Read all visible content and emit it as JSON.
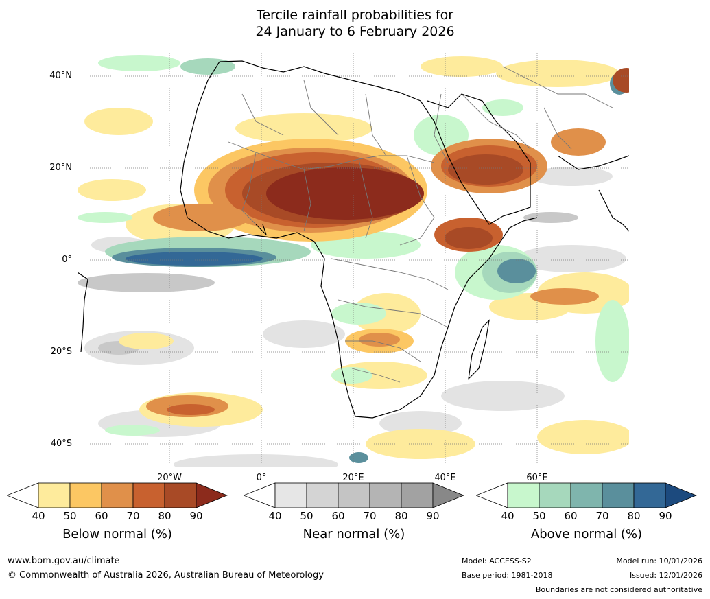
{
  "title": {
    "line1": "Tercile rainfall probabilities for",
    "line2": "24 January to 6 February 2026"
  },
  "map": {
    "lat_labels": [
      "40°N",
      "20°N",
      "0°",
      "20°S",
      "40°S"
    ],
    "lon_labels": [
      "20°W",
      "0°",
      "20°E",
      "40°E",
      "60°E"
    ]
  },
  "colorbars": {
    "ticks": [
      "40",
      "50",
      "60",
      "70",
      "80",
      "90"
    ],
    "below": {
      "title": "Below normal (%)",
      "colors": [
        "#ffffff",
        "#feeb9c",
        "#fcc763",
        "#e0904a",
        "#c8612f",
        "#a84a26",
        "#8c2b1c"
      ]
    },
    "near": {
      "title": "Near normal (%)",
      "colors": [
        "#ffffff",
        "#e6e6e6",
        "#d4d4d4",
        "#c4c4c4",
        "#b4b4b4",
        "#a2a2a2",
        "#888888"
      ]
    },
    "above": {
      "title": "Above normal (%)",
      "colors": [
        "#ffffff",
        "#c8f7cd",
        "#a6d8bc",
        "#7fb5ad",
        "#5a8f9c",
        "#336896",
        "#1c4a7e"
      ]
    }
  },
  "footer": {
    "website": "www.bom.gov.au/climate",
    "copyright": "© Commonwealth of Australia 2026, Australian Bureau of Meteorology",
    "model": "Model: ACCESS-S2",
    "base_period": "Base period: 1981-2018",
    "model_run": "Model run: 10/01/2026",
    "issued": "Issued: 12/01/2026",
    "disclaimer": "Boundaries are not considered authoritative"
  }
}
